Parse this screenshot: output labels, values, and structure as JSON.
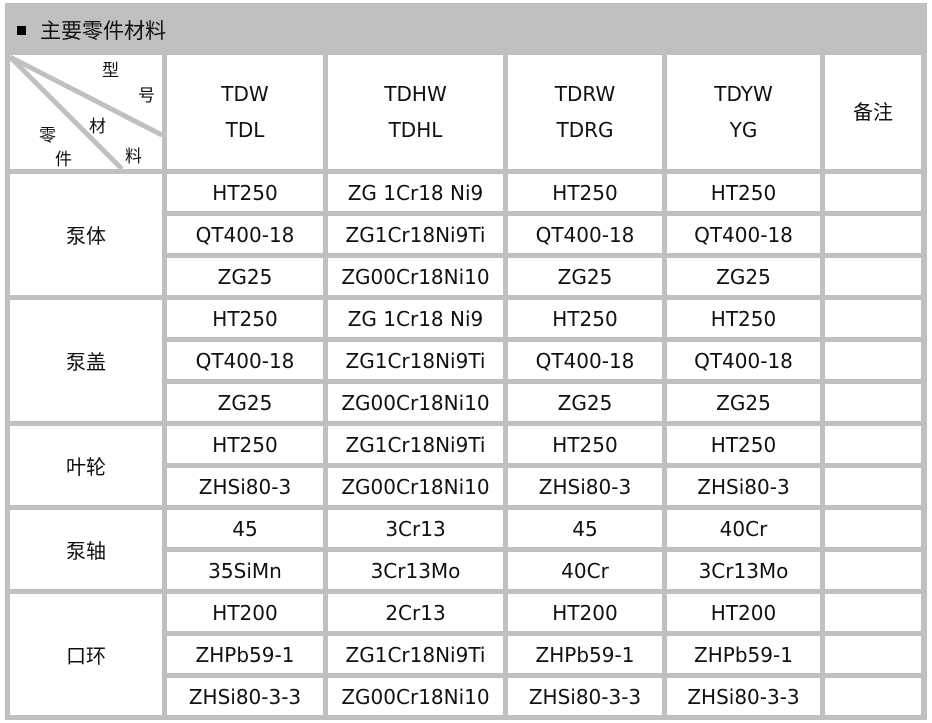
{
  "title": "主要零件材料",
  "corner": {
    "model_chars": [
      "型",
      "号"
    ],
    "material_chars": [
      "材",
      "料"
    ],
    "part_chars": [
      "零",
      "件"
    ]
  },
  "headers": [
    [
      "TDW",
      "TDL"
    ],
    [
      "TDHW",
      "TDHL"
    ],
    [
      "TDRW",
      "TDRG"
    ],
    [
      "TDYW",
      "YG"
    ],
    [
      "备注"
    ]
  ],
  "groups": [
    {
      "part": "泵体",
      "rows": [
        [
          "HT250",
          "ZG 1Cr18 Ni9",
          "HT250",
          "HT250"
        ],
        [
          "QT400-18",
          "ZG1Cr18Ni9Ti",
          "QT400-18",
          "QT400-18"
        ],
        [
          "ZG25",
          "ZG00Cr18Ni10",
          "ZG25",
          "ZG25"
        ]
      ]
    },
    {
      "part": "泵盖",
      "rows": [
        [
          "HT250",
          "ZG 1Cr18 Ni9",
          "HT250",
          "HT250"
        ],
        [
          "QT400-18",
          "ZG1Cr18Ni9Ti",
          "QT400-18",
          "QT400-18"
        ],
        [
          "ZG25",
          "ZG00Cr18Ni10",
          "ZG25",
          "ZG25"
        ]
      ]
    },
    {
      "part": "叶轮",
      "rows": [
        [
          "HT250",
          "ZG1Cr18Ni9Ti",
          "HT250",
          "HT250"
        ],
        [
          "ZHSi80-3",
          "ZG00Cr18Ni10",
          "ZHSi80-3",
          "ZHSi80-3"
        ]
      ]
    },
    {
      "part": "泵轴",
      "rows": [
        [
          "45",
          "3Cr13",
          "45",
          "40Cr"
        ],
        [
          "35SiMn",
          "3Cr13Mo",
          "40Cr",
          "3Cr13Mo"
        ]
      ]
    },
    {
      "part": "口环",
      "rows": [
        [
          "HT200",
          "2Cr13",
          "HT200",
          "HT200"
        ],
        [
          "ZHPb59-1",
          "ZG1Cr18Ni9Ti",
          "ZHPb59-1",
          "ZHPb59-1"
        ],
        [
          "ZHSi80-3-3",
          "ZG00Cr18Ni10",
          "ZHSi80-3-3",
          "ZHSi80-3-3"
        ]
      ]
    }
  ]
}
